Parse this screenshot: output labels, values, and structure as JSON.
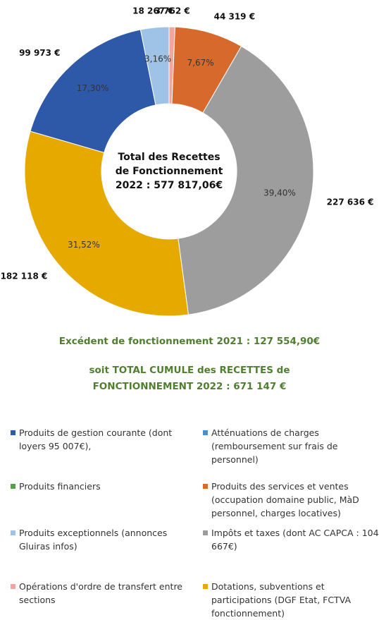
{
  "chart_data": {
    "type": "donut",
    "center_label": [
      "Total des Recettes",
      "de Fonctionnement",
      "2022 : 577 817,06€"
    ],
    "subtitle": "Excédent de fonctionnement 2021  : 127 554,90€",
    "total_label": [
      "soit TOTAL CUMULE des RECETTES de",
      "FONCTIONNEMENT 2022 : 671 147 €"
    ],
    "categories": [
      "Opérations d'ordre de transfert entre sections",
      "Produits des services et ventes (occupation domaine public, MàD personnel, charges locatives)",
      "Impôts et taxes (dont AC CAPCA : 104 667€)",
      "Dotations, subventions et participations (DGF Etat, FCTVA fonctionnement)",
      "Produits de gestion courante (dont loyers 95 007€),",
      "Produits exceptionnels (annonces Gluiras infos)",
      "Atténuations de charges (remboursement sur frais de personnel)",
      "Produits financiers"
    ],
    "values": [
      3762,
      44319,
      227636,
      182118,
      99973,
      18267,
      null,
      null
    ],
    "value_labels": [
      "3 762 €",
      "44 319 €",
      "227 636 €",
      "182 118 €",
      "99 973 €",
      "18 267 €",
      null,
      null
    ],
    "percent_labels": [
      null,
      "7,67%",
      "39,40%",
      "31,52%",
      "17,30%",
      "3,16%",
      null,
      null
    ],
    "colors": [
      "#f4a49c",
      "#d8692c",
      "#9d9d9d",
      "#e6a900",
      "#2e59a8",
      "#9fc3e7",
      "#4a8fd1",
      "#4fa345"
    ]
  }
}
